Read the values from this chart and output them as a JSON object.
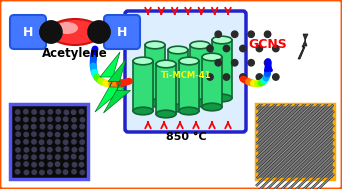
{
  "background_color": "#ffffff",
  "outer_border_color": "#ff5500",
  "inner_border_color": "#2222cc",
  "title_text": "850 °C",
  "acetylene_label": "Acetylene",
  "gcns_label": "GCNS",
  "ti_mcm_label": "Ti-MCM-41",
  "fig_width": 3.42,
  "fig_height": 1.89,
  "dpi": 100
}
